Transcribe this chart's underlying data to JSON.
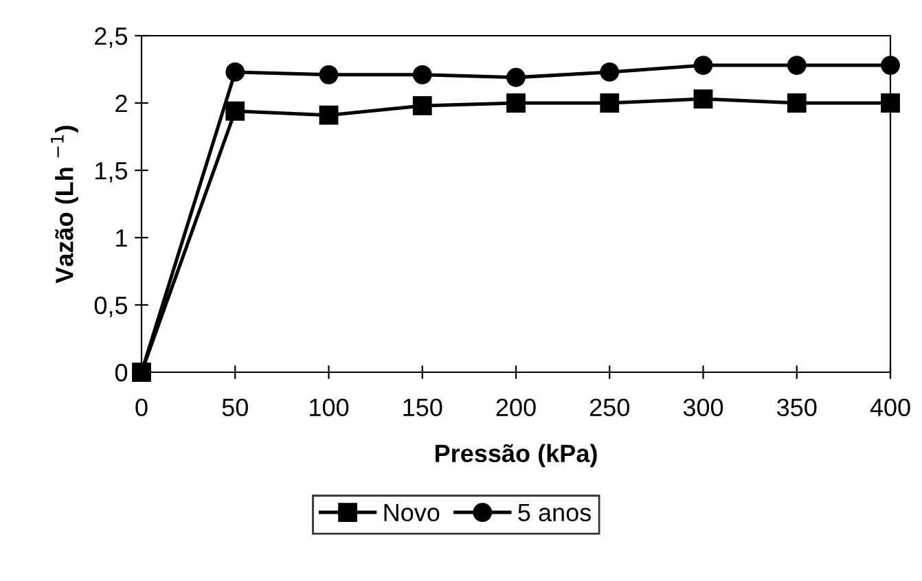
{
  "chart_data": {
    "type": "line",
    "xlabel": "Pressão (kPa)",
    "ylabel": "Vazão (Lh $^{−1}$)",
    "x": [
      0,
      50,
      100,
      150,
      200,
      250,
      300,
      350,
      400
    ],
    "series": [
      {
        "name": "Novo",
        "color": "#000000",
        "marker": "square",
        "values": [
          0,
          1.94,
          1.91,
          1.98,
          2.0,
          2.0,
          2.03,
          2.0,
          2.0
        ]
      },
      {
        "name": "5 anos",
        "color": "#000000",
        "marker": "circle",
        "values": [
          0,
          2.23,
          2.21,
          2.21,
          2.19,
          2.23,
          2.28,
          2.28,
          2.28
        ]
      }
    ],
    "xlim": [
      0,
      400
    ],
    "xticks": [
      0,
      50,
      100,
      150,
      200,
      250,
      300,
      350,
      400
    ],
    "ylim": [
      0,
      2.5
    ],
    "yticks": [
      0,
      {
        "value": 0.5,
        "label": "0,5"
      },
      1,
      {
        "value": 1.5,
        "label": "1,5"
      },
      2,
      {
        "value": 2.5,
        "label": "2,5"
      }
    ],
    "grid": false,
    "legend": "bottom",
    "line_style": "solid"
  }
}
